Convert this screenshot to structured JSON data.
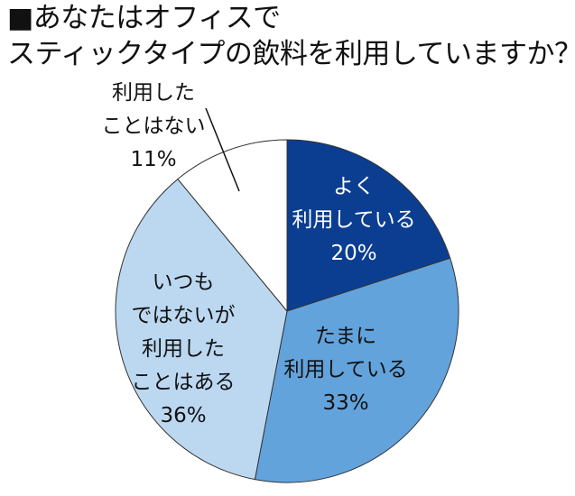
{
  "title_lines": [
    "■あなたはオフィスで",
    "スティックタイプの飲料を利用していますか？"
  ],
  "chart_data": {
    "type": "pie",
    "title": "■あなたはオフィスでスティックタイプの飲料を利用していますか？",
    "unit": "%",
    "start_angle_deg": 0,
    "direction": "clockwise",
    "legend": "none",
    "slices": [
      {
        "label_lines": [
          "よく",
          "利用している"
        ],
        "value": 20,
        "value_label": "20%",
        "color": "#0b3e91",
        "text_color": "#ffffff"
      },
      {
        "label_lines": [
          "たまに",
          "利用している"
        ],
        "value": 33,
        "value_label": "33%",
        "color": "#63a3dc",
        "text_color": "#111111"
      },
      {
        "label_lines": [
          "いつも",
          "ではないが",
          "利用した",
          "ことはある"
        ],
        "value": 36,
        "value_label": "36%",
        "color": "#bcd8f1",
        "text_color": "#111111"
      },
      {
        "label_lines": [
          "利用した",
          "ことはない"
        ],
        "value": 11,
        "value_label": "11%",
        "color": "#ffffff",
        "text_color": "#111111"
      }
    ]
  }
}
